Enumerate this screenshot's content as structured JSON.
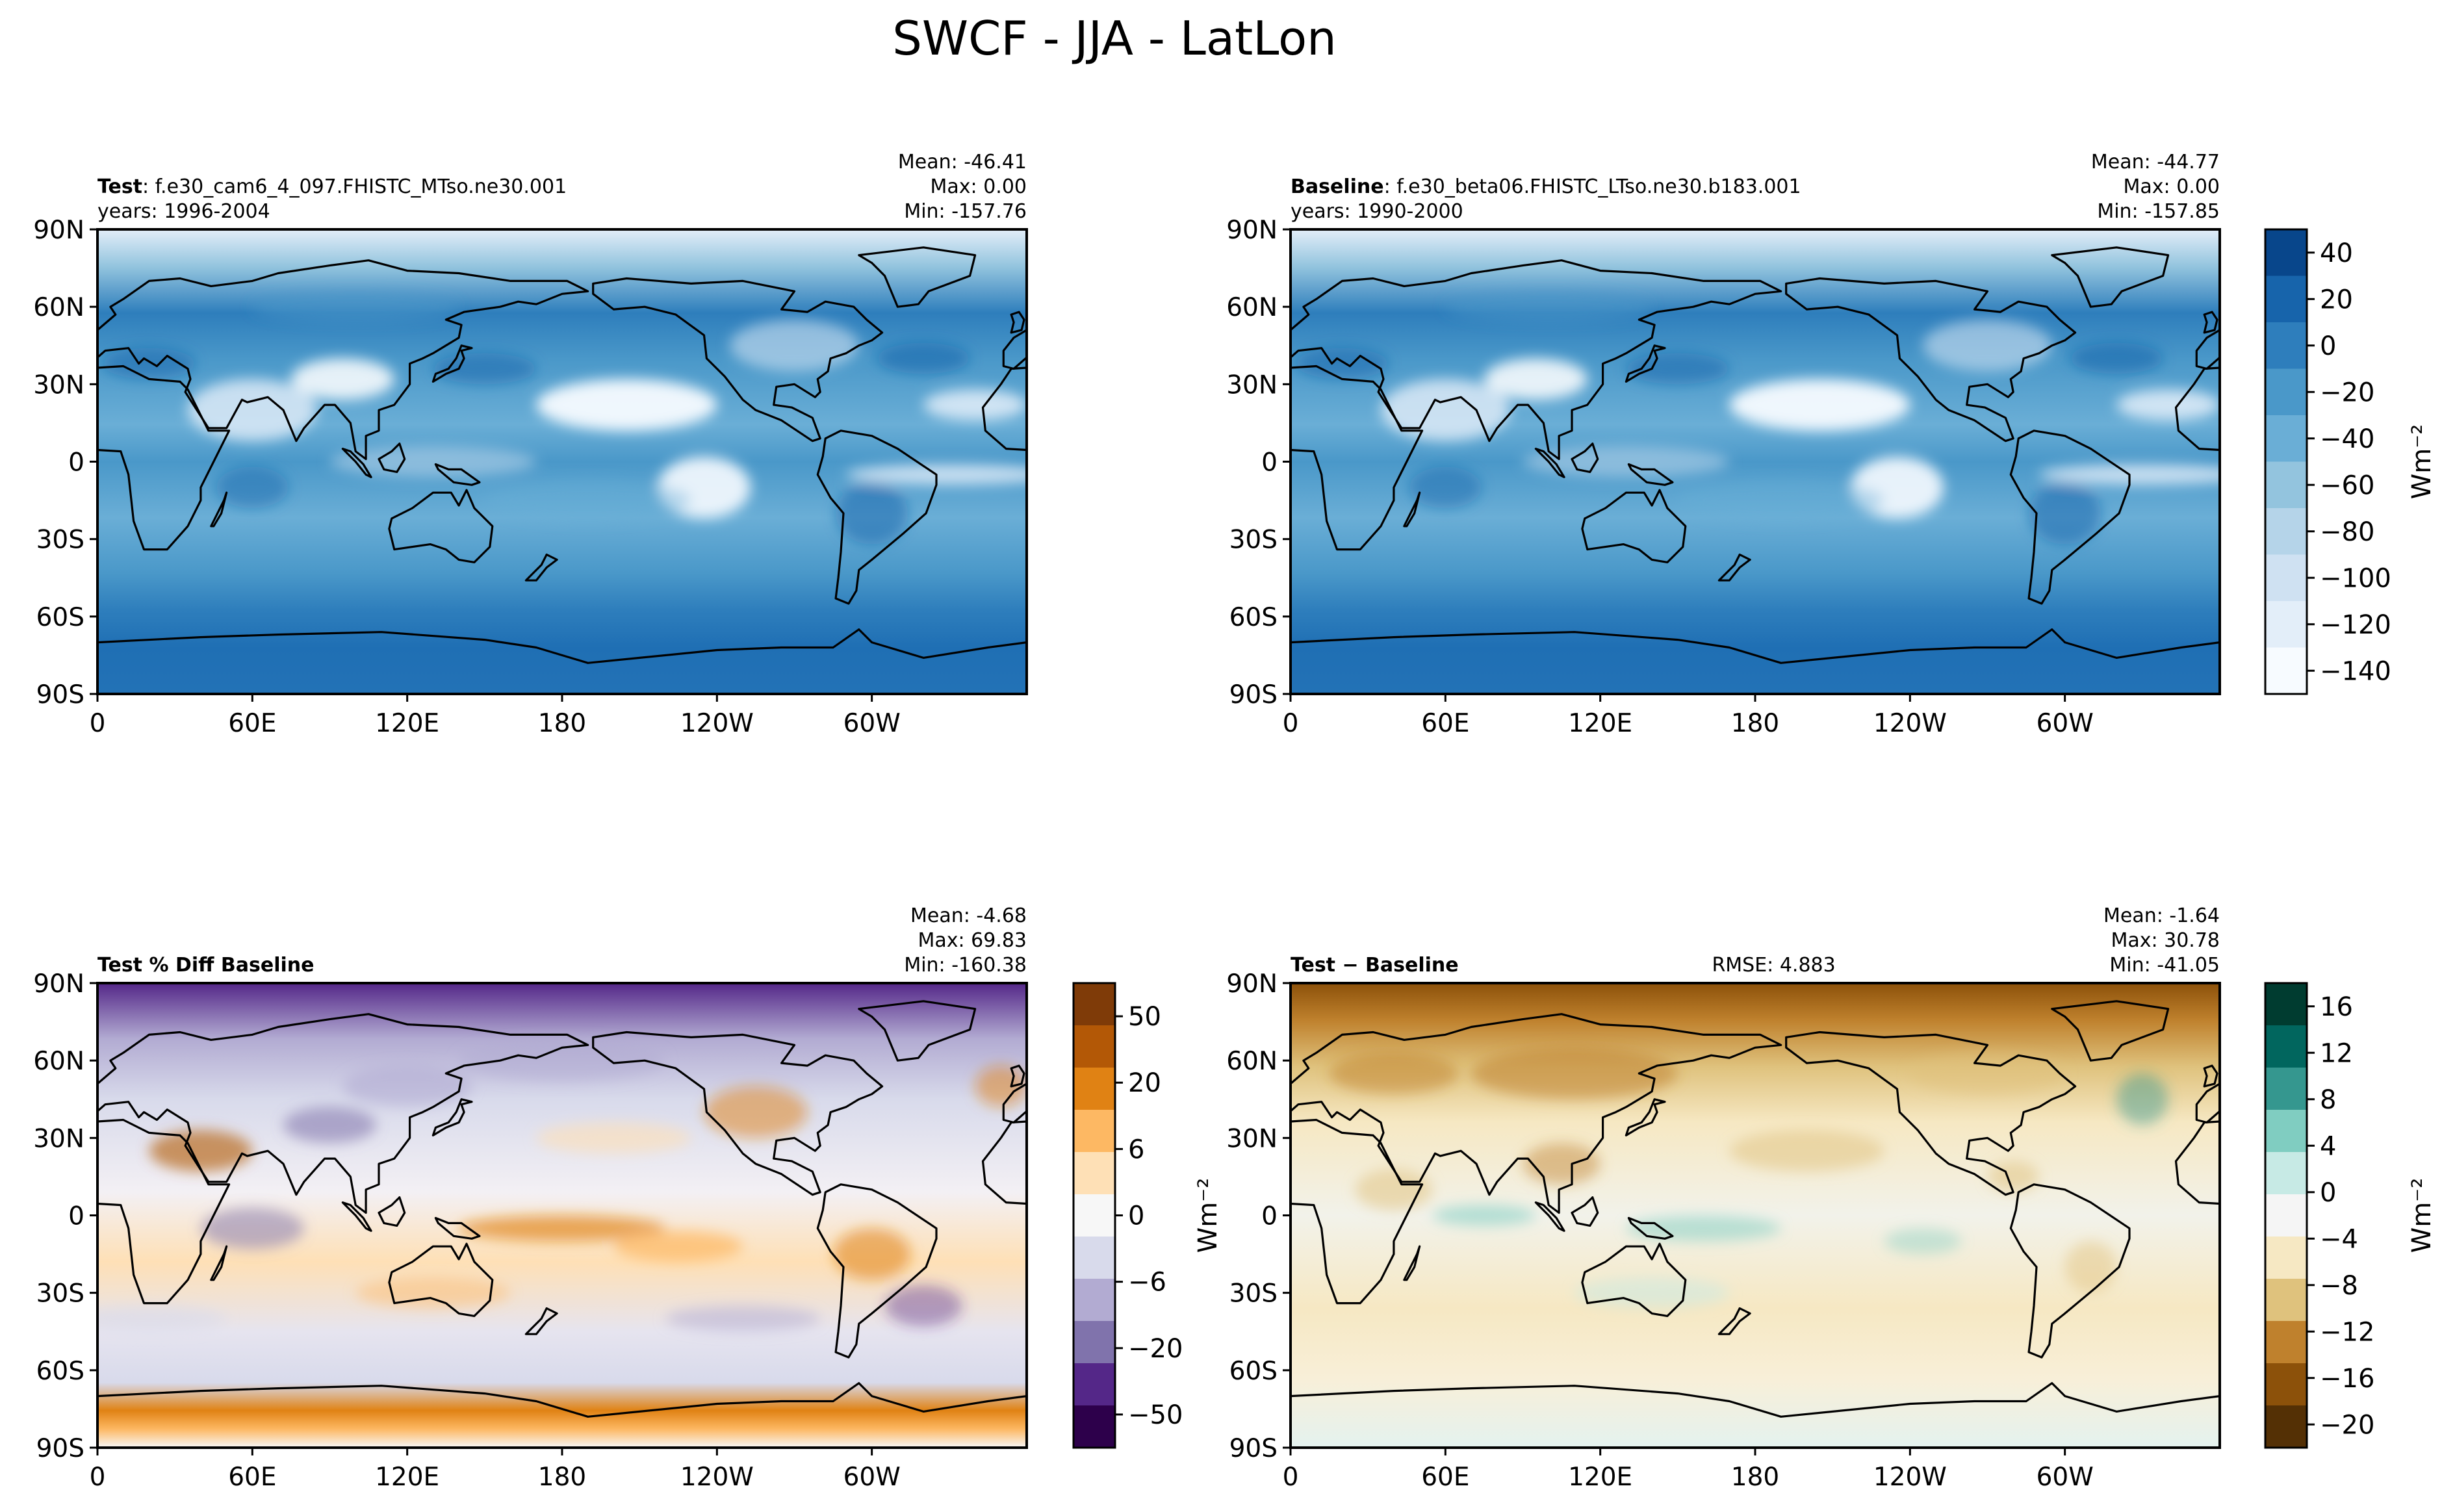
{
  "title": "SWCF - JJA - LatLon",
  "colors": {
    "blues": [
      "#f7fbff",
      "#e3eef9",
      "#cfe1f2",
      "#b5d4e9",
      "#93c4de",
      "#6aaed6",
      "#4a98c9",
      "#2e7ebc",
      "#1764ab",
      "#08468b"
    ],
    "puor": [
      "#2d004b",
      "#542788",
      "#8073ac",
      "#b2abd2",
      "#d8daeb",
      "#f7f7f7",
      "#fee0b6",
      "#fdb863",
      "#e08214",
      "#b35806",
      "#7f3b08"
    ],
    "brbg": [
      "#543005",
      "#8c510a",
      "#bf812d",
      "#dfc27d",
      "#f6e8c3",
      "#f5f5f5",
      "#c7eae5",
      "#80cdc1",
      "#35978f",
      "#01665e",
      "#003c30"
    ],
    "land_mask": "#ffffff",
    "coastline": "#000000"
  },
  "chart_data": [
    {
      "type": "heatmap",
      "panel": "test",
      "label_bold": "Test",
      "label_rest": ": f.e30_cam6_4_097.FHISTC_MTso.ne30.001",
      "years": "years: 1996-2004",
      "stats": [
        "Mean: -46.41",
        "Max:  0.00",
        "Min: -157.76"
      ],
      "xticks": [
        "0",
        "60E",
        "120E",
        "180",
        "120W",
        "60W"
      ],
      "yticks": [
        "90N",
        "60N",
        "30N",
        "0",
        "30S",
        "60S",
        "90S"
      ],
      "xlim": [
        0,
        360
      ],
      "ylim": [
        -90,
        90
      ],
      "mean": -46.41,
      "max": 0.0,
      "min": -157.76
    },
    {
      "type": "heatmap",
      "panel": "baseline",
      "label_bold": "Baseline",
      "label_rest": ": f.e30_beta06.FHISTC_LTso.ne30.b183.001",
      "years": "years: 1990-2000",
      "stats": [
        "Mean: -44.77",
        "Max:  0.00",
        "Min: -157.85"
      ],
      "xticks": [
        "0",
        "60E",
        "120E",
        "180",
        "120W",
        "60W"
      ],
      "yticks": [
        "90N",
        "60N",
        "30N",
        "0",
        "30S",
        "60S",
        "90S"
      ],
      "xlim": [
        0,
        360
      ],
      "ylim": [
        -90,
        90
      ],
      "mean": -44.77,
      "max": 0.0,
      "min": -157.85,
      "colorbar": {
        "ticks": [
          "40",
          "20",
          "0",
          "−20",
          "−40",
          "−60",
          "−80",
          "−100",
          "−120",
          "−140"
        ],
        "range": [
          -150,
          40
        ],
        "label": "Wm⁻²"
      }
    },
    {
      "type": "heatmap",
      "panel": "pct-diff",
      "label_bold": "Test % Diff Baseline",
      "stats": [
        "Mean: -4.68",
        "Max: 69.83",
        "Min: -160.38"
      ],
      "xticks": [
        "0",
        "60E",
        "120E",
        "180",
        "120W",
        "60W"
      ],
      "yticks": [
        "90N",
        "60N",
        "30N",
        "0",
        "30S",
        "60S",
        "90S"
      ],
      "xlim": [
        0,
        360
      ],
      "ylim": [
        -90,
        90
      ],
      "mean": -4.68,
      "max": 69.83,
      "min": -160.38,
      "colorbar": {
        "ticks": [
          "50",
          "20",
          "6",
          "0",
          "−6",
          "−20",
          "−50"
        ],
        "label": "Wm⁻²"
      }
    },
    {
      "type": "heatmap",
      "panel": "diff",
      "label_bold": "Test − Baseline",
      "rmse": "RMSE: 4.883",
      "stats": [
        "Mean: -1.64",
        "Max: 30.78",
        "Min: -41.05"
      ],
      "xticks": [
        "0",
        "60E",
        "120E",
        "180",
        "120W",
        "60W"
      ],
      "yticks": [
        "90N",
        "60N",
        "30N",
        "0",
        "30S",
        "60S",
        "90S"
      ],
      "xlim": [
        0,
        360
      ],
      "ylim": [
        -90,
        90
      ],
      "mean": -1.64,
      "max": 30.78,
      "min": -41.05,
      "rmse_value": 4.883,
      "colorbar": {
        "ticks": [
          "16",
          "12",
          "8",
          "4",
          "0",
          "−4",
          "−8",
          "−12",
          "−16",
          "−20"
        ],
        "range": [
          -20,
          18
        ],
        "label": "Wm⁻²"
      }
    }
  ]
}
